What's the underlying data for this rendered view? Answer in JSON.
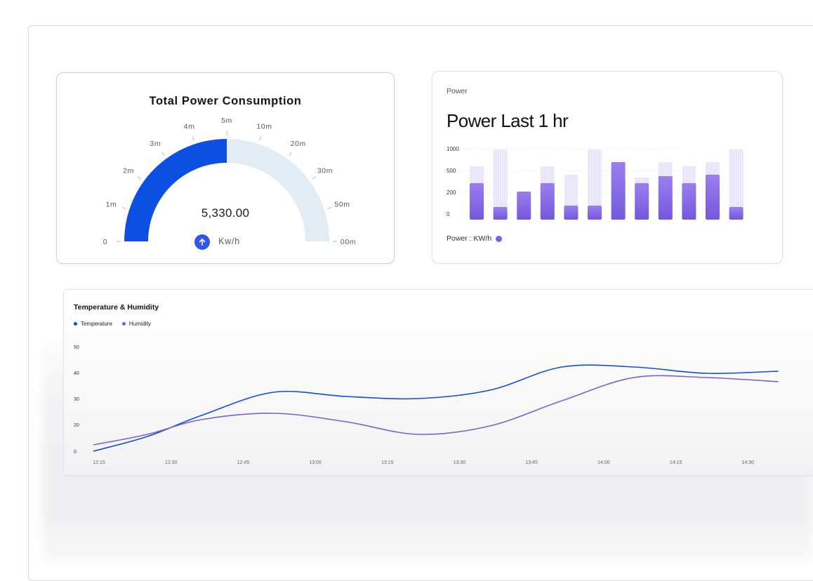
{
  "gauge": {
    "title": "Total Power Consumption",
    "value": "5,330.00",
    "unit": "Kw/h",
    "fill_fraction": 0.5,
    "scale_labels": [
      "0",
      "1m",
      "2m",
      "3m",
      "4m",
      "5m",
      "10m",
      "20m",
      "30m",
      "50m",
      "00m"
    ],
    "colors": {
      "fill": "#0b4fe3",
      "track": "#e1ecf5",
      "button": "#2f56e6"
    },
    "icon": "arrow-up-icon"
  },
  "power_chart": {
    "label": "Power",
    "title": "Power Last 1 hr",
    "legend_label": "Power : KW/h",
    "legend_color": "#7d5ee0"
  },
  "temp_chart": {
    "title": "Temperature & Humidity",
    "legend": [
      {
        "label": "Temperature",
        "color": "#0d4fd8"
      },
      {
        "label": "Humidity",
        "color": "#7b5fd1"
      }
    ]
  },
  "chart_data": [
    {
      "type": "bar",
      "title": "Power Last 1 hr",
      "y_ticks": [
        "1000",
        "500",
        "200",
        "0"
      ],
      "ylim": [
        0,
        1000
      ],
      "legend": "Power : KW/h",
      "grid": true,
      "series": [
        {
          "name": "Power : KW/h",
          "values": [
            520,
            180,
            400,
            520,
            200,
            200,
            820,
            520,
            620,
            520,
            640,
            180
          ]
        },
        {
          "values": [
            760,
            1000,
            0,
            760,
            640,
            1000,
            0,
            600,
            820,
            760,
            820,
            1000
          ]
        }
      ]
    },
    {
      "type": "line",
      "title": "Temperature & Humidity",
      "x": [
        "12:15",
        "12:30",
        "12:45",
        "13:00",
        "13:15",
        "13:30",
        "13:45",
        "14:00",
        "14:15",
        "14:30"
      ],
      "y_ticks": [
        "50",
        "40",
        "30",
        "20",
        "0"
      ],
      "ylim": [
        0,
        50
      ],
      "series": [
        {
          "name": "Temperature",
          "points": [
            [
              0,
              0
            ],
            [
              0.75,
              7
            ],
            [
              1.5,
              17
            ],
            [
              2.5,
              28
            ],
            [
              3.5,
              26
            ],
            [
              4.5,
              25
            ],
            [
              5.5,
              29
            ],
            [
              6.5,
              40
            ],
            [
              7.5,
              40
            ],
            [
              8.5,
              37
            ],
            [
              9.5,
              38
            ]
          ]
        },
        {
          "name": "Humidity",
          "points": [
            [
              0,
              3
            ],
            [
              0.75,
              8
            ],
            [
              1.5,
              15
            ],
            [
              2.5,
              18
            ],
            [
              3.5,
              14
            ],
            [
              4.5,
              8
            ],
            [
              5.5,
              12
            ],
            [
              6.5,
              24
            ],
            [
              7.5,
              35
            ],
            [
              8.5,
              35
            ],
            [
              9.5,
              33
            ]
          ]
        }
      ],
      "legend_position": "top-left",
      "grid": false
    }
  ]
}
